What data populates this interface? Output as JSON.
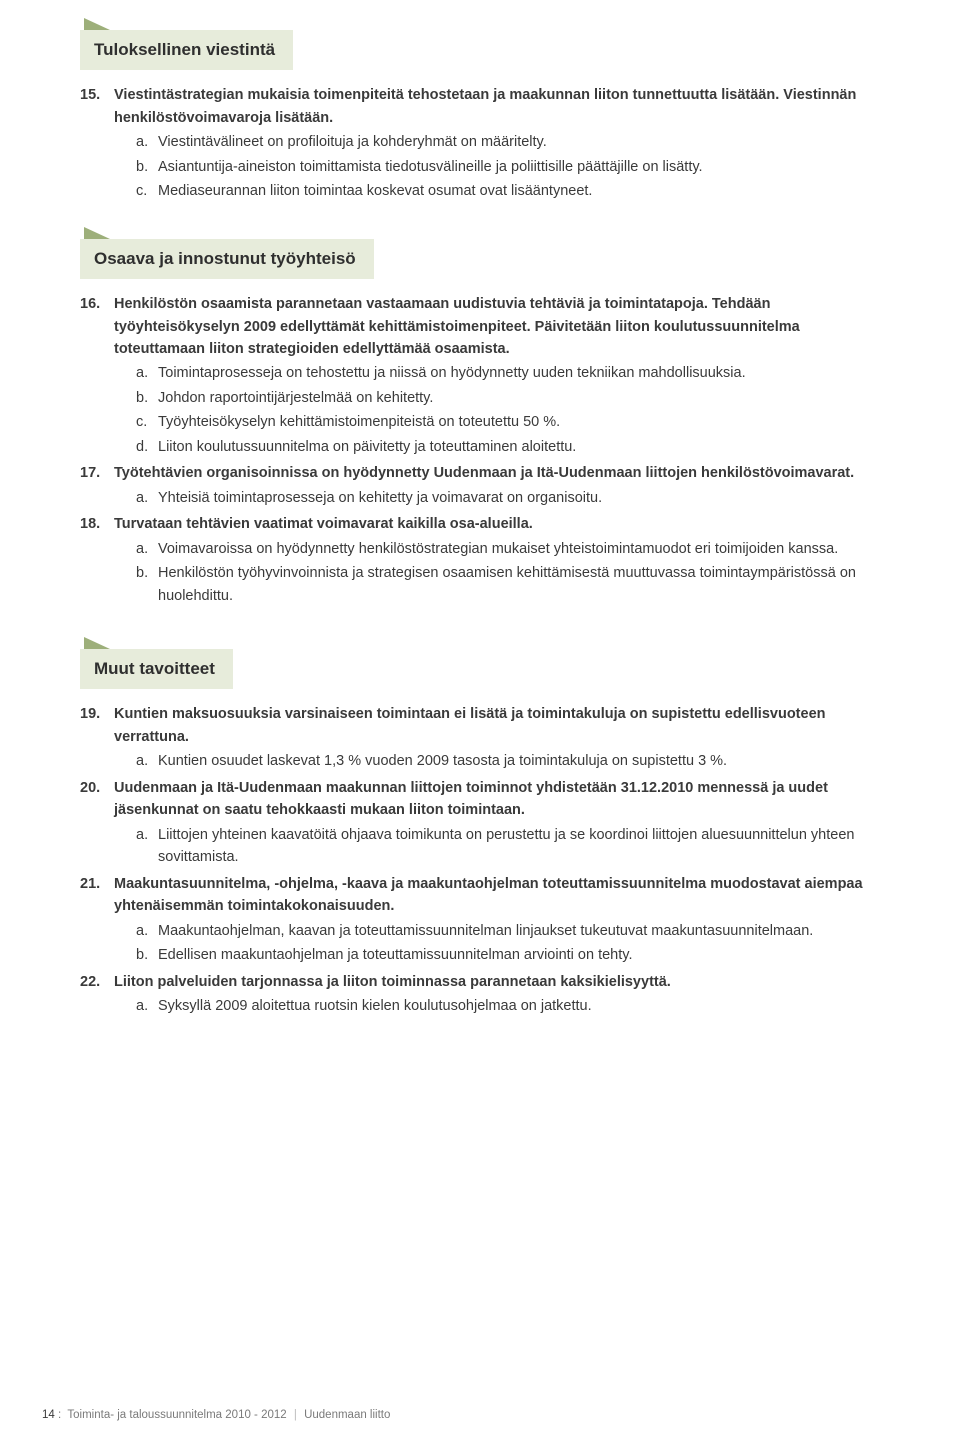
{
  "colors": {
    "tab": "#9daf7a",
    "headerBg": "#e7ecdb",
    "text": "#3a3a3a",
    "footer": "#7a7a7a"
  },
  "sections": [
    {
      "title": "Tuloksellinen viestintä",
      "items": [
        {
          "num": "15.",
          "title": "Viestintästrategian mukaisia toimenpiteitä tehostetaan ja maakunnan liiton tunnettuutta lisätään. Viestinnän henkilöstövoimavaroja lisätään.",
          "subs": [
            {
              "l": "a.",
              "t": "Viestintävälineet on profiloituja ja kohderyhmät on määritelty."
            },
            {
              "l": "b.",
              "t": "Asiantuntija-aineiston toimittamista tiedotusvälineille ja poliittisille päättäjille on lisätty."
            },
            {
              "l": "c.",
              "t": "Mediaseurannan liiton toimintaa koskevat osumat ovat lisääntyneet."
            }
          ]
        }
      ]
    },
    {
      "title": "Osaava ja innostunut työyhteisö",
      "items": [
        {
          "num": "16.",
          "title": "Henkilöstön osaamista parannetaan vastaamaan uudistuvia tehtäviä ja toimintatapoja. Tehdään työyhteisökyselyn 2009 edellyttämät kehittämistoimenpiteet. Päivitetään liiton koulutussuunnitelma toteuttamaan liiton strategioiden edellyttämää osaamista.",
          "subs": [
            {
              "l": "a.",
              "t": "Toimintaprosesseja on tehostettu ja niissä on hyödynnetty uuden tekniikan mahdollisuuksia."
            },
            {
              "l": "b.",
              "t": "Johdon raportointijärjestelmää on kehitetty."
            },
            {
              "l": "c.",
              "t": "Työyhteisökyselyn kehittämistoimenpiteistä on toteutettu 50 %."
            },
            {
              "l": "d.",
              "t": "Liiton koulutussuunnitelma on päivitetty ja toteuttaminen aloitettu."
            }
          ]
        },
        {
          "num": "17.",
          "title": "Työtehtävien organisoinnissa on hyödynnetty Uudenmaan ja Itä-Uudenmaan liittojen henkilöstövoimavarat.",
          "subs": [
            {
              "l": "a.",
              "t": "Yhteisiä toimintaprosesseja on kehitetty ja voimavarat on organisoitu."
            }
          ]
        },
        {
          "num": "18.",
          "title": "Turvataan tehtävien vaatimat voimavarat kaikilla osa-alueilla.",
          "subs": [
            {
              "l": "a.",
              "t": "Voimavaroissa on hyödynnetty henkilöstöstrategian mukaiset yhteistoimintamuodot eri toimijoiden kanssa."
            },
            {
              "l": "b.",
              "t": "Henkilöstön työhyvinvoinnista ja strategisen osaamisen kehittämisestä muuttuvassa toimintaympäristössä on huolehdittu."
            }
          ]
        }
      ]
    },
    {
      "title": "Muut tavoitteet",
      "items": [
        {
          "num": "19.",
          "title": "Kuntien maksuosuuksia varsinaiseen toimintaan ei lisätä ja toimintakuluja on supistettu edellisvuoteen verrattuna.",
          "subs": [
            {
              "l": "a.",
              "t": "Kuntien osuudet laskevat 1,3 % vuoden 2009 tasosta ja toimintakuluja on supistettu 3 %."
            }
          ]
        },
        {
          "num": "20.",
          "title": "Uudenmaan ja Itä-Uudenmaan maakunnan liittojen toiminnot yhdistetään 31.12.2010 mennessä ja uudet jäsenkunnat on saatu tehokkaasti mukaan liiton toimintaan.",
          "subs": [
            {
              "l": "a.",
              "t": "Liittojen yhteinen kaavatöitä ohjaava toimikunta on perustettu ja se koordinoi liittojen aluesuunnittelun yhteen sovittamista."
            }
          ]
        },
        {
          "num": "21.",
          "title": "Maakuntasuunnitelma, -ohjelma, -kaava ja maakuntaohjelman toteuttamissuunnitelma muodostavat aiempaa yhtenäisemmän toimintakokonaisuuden.",
          "subs": [
            {
              "l": "a.",
              "t": "Maakuntaohjelman, kaavan ja toteuttamissuunnitelman linjaukset tukeutuvat maakuntasuunnitelmaan."
            },
            {
              "l": "b.",
              "t": "Edellisen maakuntaohjelman ja toteuttamissuunnitelman arviointi on tehty."
            }
          ]
        },
        {
          "num": "22.",
          "title": "Liiton palveluiden tarjonnassa ja liiton toiminnassa parannetaan kaksikielisyyttä.",
          "subs": [
            {
              "l": "a.",
              "t": "Syksyllä 2009 aloitettua ruotsin kielen koulutusohjelmaa on jatkettu."
            }
          ]
        }
      ]
    }
  ],
  "footer": {
    "page": "14",
    "colon": ":",
    "doc": "Toiminta- ja taloussuunnitelma 2010 - 2012",
    "org": "Uudenmaan liitto"
  }
}
